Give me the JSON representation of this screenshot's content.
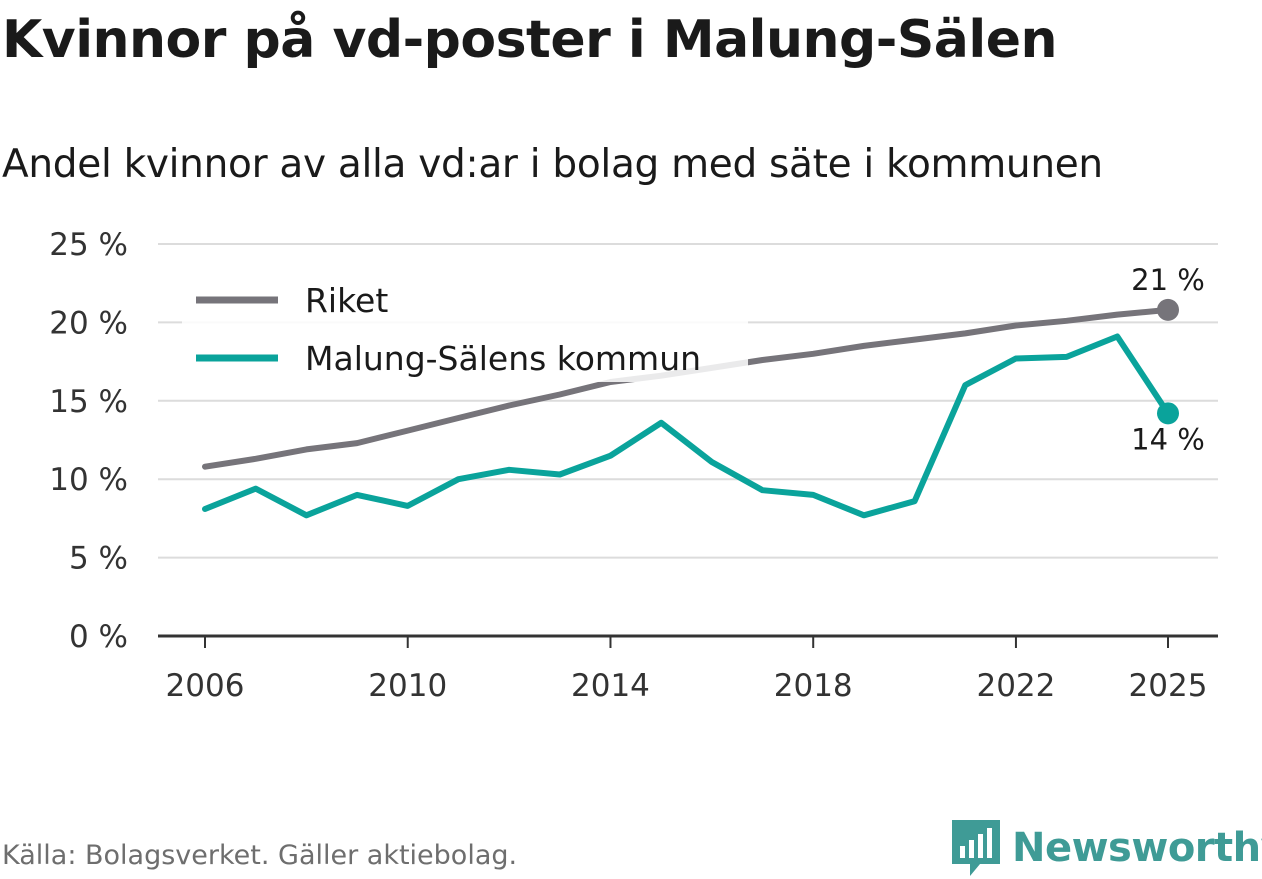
{
  "title": "Kvinnor på vd-poster i Malung-Sälen",
  "subtitle": "Andel kvinnor av alla vd:ar i bolag med säte i kommunen",
  "source": "Källa: Bolagsverket. Gäller aktiebolag.",
  "brand": "Newsworthy",
  "colors": {
    "riket": "#76747a",
    "kommun": "#0aa39b",
    "grid": "#dcdcdc",
    "axis": "#333333"
  },
  "chart_data": {
    "type": "line",
    "x": [
      2006,
      2007,
      2008,
      2009,
      2010,
      2011,
      2012,
      2013,
      2014,
      2015,
      2016,
      2017,
      2018,
      2019,
      2020,
      2021,
      2022,
      2023,
      2024,
      2025
    ],
    "series": [
      {
        "name": "Riket",
        "key": "riket",
        "values": [
          10.8,
          11.3,
          11.9,
          12.3,
          13.1,
          13.9,
          14.7,
          15.4,
          16.2,
          16.6,
          17.1,
          17.6,
          18.0,
          18.5,
          18.9,
          19.3,
          19.8,
          20.1,
          20.5,
          20.8
        ],
        "end_label": "21 %"
      },
      {
        "name": "Malung-Sälens kommun",
        "key": "kommun",
        "values": [
          8.1,
          9.4,
          7.7,
          9.0,
          8.3,
          10.0,
          10.6,
          10.3,
          11.5,
          13.6,
          11.1,
          9.3,
          9.0,
          7.7,
          8.6,
          16.0,
          17.7,
          17.8,
          19.1,
          14.2
        ],
        "end_label": "14 %"
      }
    ],
    "y_ticks": [
      {
        "value": 0,
        "label": "0 %"
      },
      {
        "value": 5,
        "label": "5 %"
      },
      {
        "value": 10,
        "label": "10 %"
      },
      {
        "value": 15,
        "label": "15 %"
      },
      {
        "value": 20,
        "label": "20 %"
      },
      {
        "value": 25,
        "label": "25 %"
      }
    ],
    "x_ticks": [
      {
        "value": 2006,
        "label": "2006"
      },
      {
        "value": 2010,
        "label": "2010"
      },
      {
        "value": 2014,
        "label": "2014"
      },
      {
        "value": 2018,
        "label": "2018"
      },
      {
        "value": 2022,
        "label": "2022"
      },
      {
        "value": 2025,
        "label": "2025"
      }
    ],
    "ylim": [
      0,
      25
    ],
    "xlim": [
      2006,
      2025
    ],
    "grid": true,
    "legend_position": "top-left",
    "xlabel": "",
    "ylabel": ""
  }
}
